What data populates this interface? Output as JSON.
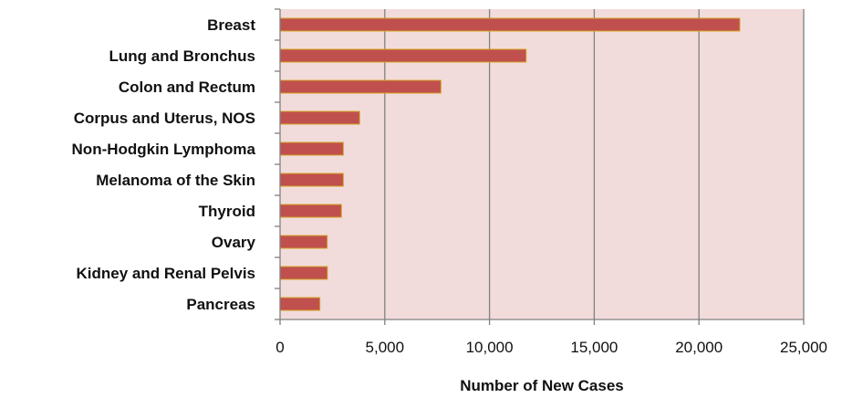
{
  "chart_data": {
    "type": "bar",
    "orientation": "horizontal",
    "categories": [
      "Breast",
      "Lung and Bronchus",
      "Colon and Rectum",
      "Corpus and Uterus, NOS",
      "Non-Hodgkin Lymphoma",
      "Melanoma of the Skin",
      "Thyroid",
      "Ovary",
      "Kidney and Renal Pelvis",
      "Pancreas"
    ],
    "values": [
      21950,
      11750,
      7680,
      3800,
      3020,
      3020,
      2930,
      2250,
      2260,
      1900
    ],
    "xlabel": "Number of New Cases",
    "ylabel": "",
    "xlim": [
      0,
      25000
    ],
    "xticks": [
      0,
      5000,
      10000,
      15000,
      20000,
      25000
    ],
    "xtick_labels": [
      "0",
      "5,000",
      "10,000",
      "15,000",
      "20,000",
      "25,000"
    ],
    "grid": "vertical",
    "legend": "none",
    "colors": {
      "plot_background": "#f2dcdb",
      "bar_fill": "#c0504d",
      "bar_stroke": "#d4a326",
      "gridline": "#808080",
      "axis": "#808080"
    }
  }
}
